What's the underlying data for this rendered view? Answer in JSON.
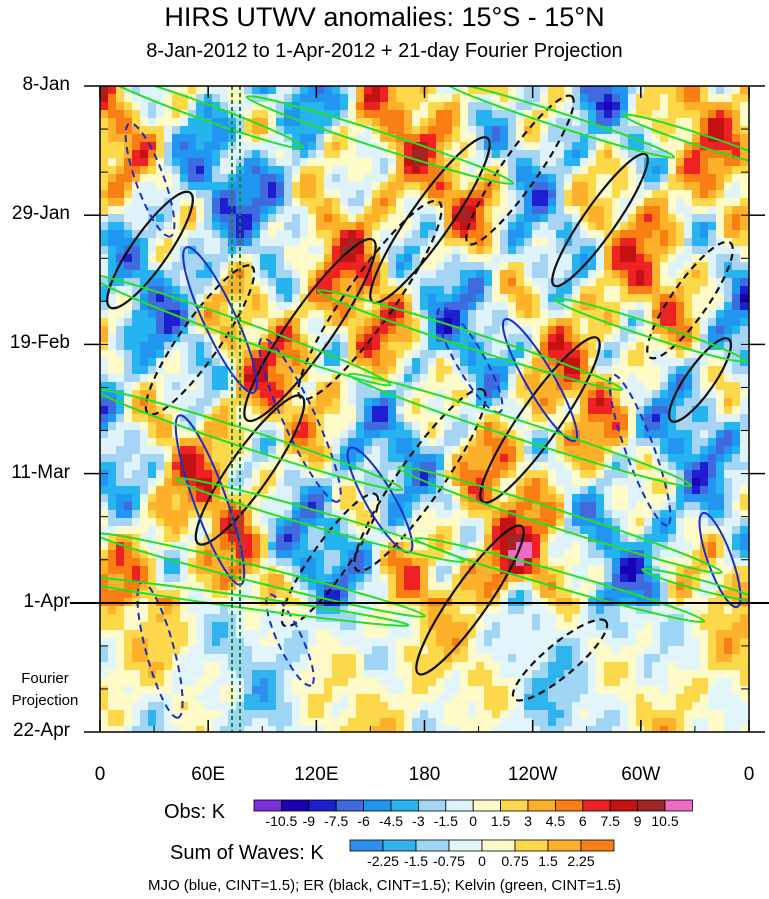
{
  "chart_data": {
    "type": "heatmap",
    "title": "HIRS UTWV anomalies: 15°S - 15°N",
    "subtitle": "8-Jan-2012 to 1-Apr-2012 + 21-day Fourier Projection",
    "x_axis": {
      "ticks": [
        "0",
        "60E",
        "120E",
        "180",
        "120W",
        "60W",
        "0"
      ],
      "range_deg_east": [
        0,
        360
      ]
    },
    "y_axis": {
      "ticks": [
        "8-Jan",
        "29-Jan",
        "19-Feb",
        "11-Mar",
        "1-Apr",
        "22-Apr"
      ],
      "range": [
        "8-Jan-2012",
        "22-Apr-2012"
      ],
      "inverted": true
    },
    "projection_label": [
      "Fourier",
      "Projection"
    ],
    "projection_start": "1-Apr",
    "colorbar_obs": {
      "label": "Obs: K",
      "levels": [
        "-10.5",
        "-9",
        "-7.5",
        "-6",
        "-4.5",
        "-3",
        "-1.5",
        "0",
        "1.5",
        "3",
        "4.5",
        "6",
        "7.5",
        "9",
        "10.5"
      ],
      "colors": [
        "#7b2fe0",
        "#1a00b5",
        "#1f1fd2",
        "#3f6bde",
        "#2196f0",
        "#26b4f0",
        "#a6d4f5",
        "#dff3fb",
        "#fffbc9",
        "#fdd84a",
        "#fdb02a",
        "#f97e14",
        "#ee2222",
        "#c41212",
        "#a02626",
        "#ef6bc4"
      ]
    },
    "colorbar_waves": {
      "label": "Sum of Waves: K",
      "levels": [
        "-2.25",
        "-1.5",
        "-0.75",
        "0",
        "0.75",
        "1.5",
        "2.25"
      ],
      "colors": [
        "#2e8fef",
        "#31b3ee",
        "#9fd6f6",
        "#e2f5fb",
        "#fffbc9",
        "#fdd84a",
        "#fdb02a",
        "#f97e14"
      ]
    },
    "contours": "MJO (blue, CINT=1.5); ER (black, CINT=1.5); Kelvin (green, CINT=1.5)"
  }
}
